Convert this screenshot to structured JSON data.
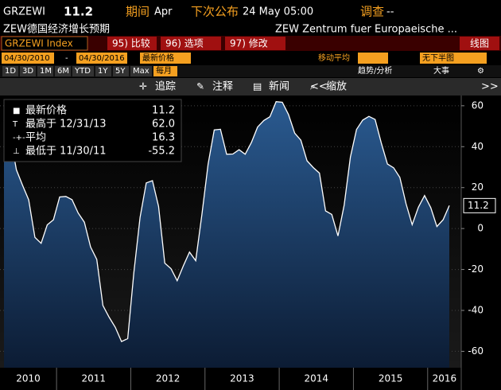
{
  "header": {
    "ticker": "GRZEWI",
    "last": "11.2",
    "period_label": "期间",
    "period": "Apr",
    "next_label": "下次公布",
    "next": "24 May 05:00",
    "survey_label": "调查",
    "survey": "--",
    "name": "ZEW德国经济增长预期",
    "source": "ZEW Zentrum fuer Europaeische ...",
    "security": "GRZEWI Index",
    "menu": [
      "95) 比较",
      "96) 选项",
      "97) 修改"
    ],
    "chart_kind": "线图",
    "start": "04/30/2010",
    "dash": "-",
    "end": "04/30/2016",
    "price_field": "最新价格",
    "moving_avg": "移动平均",
    "lower_panel": "无下半图",
    "ranges": [
      "1D",
      "3D",
      "1M",
      "6M",
      "YTD",
      "1Y",
      "5Y",
      "Max"
    ],
    "freq": "每月",
    "trend": "趋势/分析",
    "events": "大事",
    "tools": [
      "追踪",
      "注释",
      "新闻",
      "缩放"
    ]
  },
  "chart_data": {
    "type": "area",
    "values": [
      53.0,
      45.8,
      28.7,
      21.2,
      14.0,
      -4.3,
      -7.2,
      1.8,
      4.3,
      15.4,
      15.7,
      14.1,
      7.6,
      3.1,
      -9.0,
      -15.1,
      -37.6,
      -43.3,
      -48.3,
      -55.2,
      -53.8,
      -21.6,
      5.4,
      22.3,
      23.4,
      10.8,
      -16.9,
      -19.6,
      -25.5,
      -18.2,
      -11.5,
      -15.7,
      6.9,
      31.5,
      48.2,
      48.5,
      36.3,
      36.4,
      38.5,
      36.3,
      42.0,
      49.6,
      52.8,
      54.6,
      62.0,
      61.7,
      55.7,
      46.6,
      43.2,
      33.1,
      29.8,
      27.1,
      8.6,
      6.9,
      -3.6,
      11.5,
      34.9,
      48.4,
      53.0,
      54.8,
      53.3,
      41.9,
      31.5,
      29.7,
      25.0,
      12.1,
      1.9,
      10.4,
      16.1,
      10.2,
      1.0,
      4.3,
      11.2
    ],
    "year_labels": [
      "2010",
      "2011",
      "2012",
      "2013",
      "2014",
      "2015",
      "2016"
    ],
    "ylim": [
      -68,
      65
    ],
    "yticks": [
      -60,
      -40,
      -20,
      0,
      20,
      40,
      60
    ],
    "grid": true,
    "line_color": "#ffffff",
    "fill_color": "#1f4a7a",
    "last_value_label": "11.2",
    "legend": [
      {
        "label": "最新价格",
        "value": "11.2"
      },
      {
        "label": "最高于 12/31/13",
        "value": "62.0"
      },
      {
        "label": "平均",
        "value": "16.3"
      },
      {
        "label": "最低于 11/30/11",
        "value": "-55.2"
      }
    ]
  }
}
